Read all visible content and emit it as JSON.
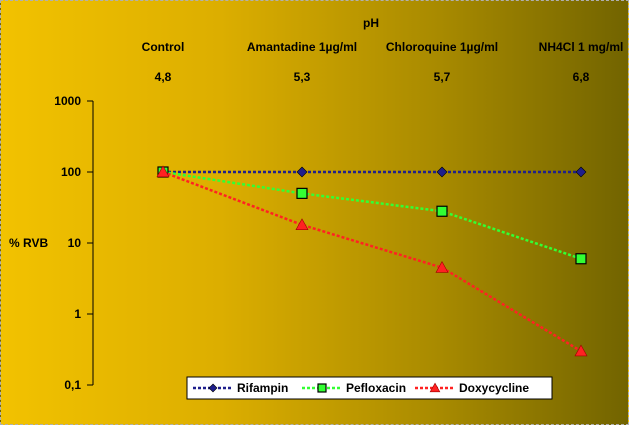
{
  "chart_data": {
    "type": "line",
    "title": "pH",
    "ylabel": "% RVB",
    "y_scale": "log",
    "ylim": [
      0.1,
      1000
    ],
    "y_ticks": [
      "1000",
      "100",
      "10",
      "1",
      "0,1"
    ],
    "categories": [
      "Control",
      "Amantadine  1µg/ml",
      "Chloroquine 1µg/ml",
      "NH4Cl 1 mg/ml"
    ],
    "ph_values": [
      "4,8",
      "5,3",
      "5,7",
      "6,8"
    ],
    "grid": false,
    "legend_position": "bottom-right",
    "series": [
      {
        "name": "Rifampin",
        "values": [
          100,
          100,
          100,
          100
        ],
        "color": "#1f1f8c",
        "line_style": "dashed",
        "marker": "diamond"
      },
      {
        "name": "Pefloxacin",
        "values": [
          100,
          50,
          28,
          6
        ],
        "color": "#33ff33",
        "line_style": "dashed",
        "marker": "square"
      },
      {
        "name": "Doxycycline",
        "values": [
          100,
          18,
          4.5,
          0.3
        ],
        "color": "#ff2222",
        "line_style": "dashed",
        "marker": "triangle"
      }
    ]
  }
}
